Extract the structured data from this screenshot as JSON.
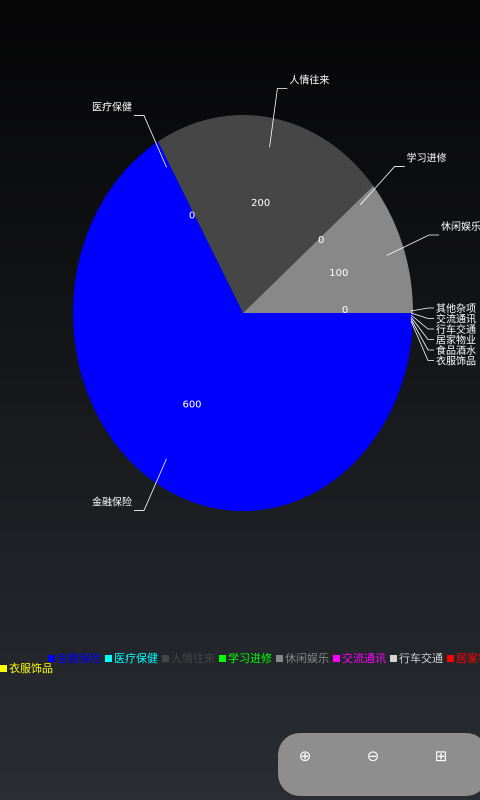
{
  "chart_data": {
    "type": "pie",
    "slices": [
      {
        "label": "金融保险",
        "value": 600,
        "color": "#0000ff",
        "value_label": "600"
      },
      {
        "label": "医疗保健",
        "value": 0,
        "color": "#00ffff",
        "value_label": "0"
      },
      {
        "label": "人情往来",
        "value": 200,
        "color": "#464646",
        "value_label": "200"
      },
      {
        "label": "学习进修",
        "value": 0,
        "color": "#00ff00",
        "value_label": "0"
      },
      {
        "label": "休闲娱乐",
        "value": 100,
        "color": "#888888",
        "value_label": "100"
      },
      {
        "label": "其他杂项",
        "value": 0,
        "color": "#ffffff",
        "value_label": "0"
      },
      {
        "label": "交流通讯",
        "value": 0,
        "color": "#ff00ff",
        "value_label": ""
      },
      {
        "label": "行车交通",
        "value": 0,
        "color": "#d3d3d3",
        "value_label": ""
      },
      {
        "label": "居家物业",
        "value": 0,
        "color": "#ff0000",
        "value_label": ""
      },
      {
        "label": "食品酒水",
        "value": 0,
        "color": "#ffffff",
        "value_label": ""
      },
      {
        "label": "衣服饰品",
        "value": 0,
        "color": "#ffff00",
        "value_label": ""
      }
    ],
    "legend_placement": "bottom",
    "grid": false
  },
  "legend": {
    "row1": [
      {
        "label": "金融保险",
        "color": "#0000ff"
      },
      {
        "label": "医疗保健",
        "color": "#00ffff"
      },
      {
        "label": "人情往来",
        "color": "#464646"
      },
      {
        "label": "学习进修",
        "color": "#00ff00"
      },
      {
        "label": "休闲娱乐",
        "color": "#888888"
      },
      {
        "label": "交流通讯",
        "color": "#ff00ff"
      },
      {
        "label": "行车交通",
        "color": "#d3d3d3"
      },
      {
        "label": "居家物业",
        "color": "#ff0000"
      },
      {
        "label": "食品酒水",
        "color": "#ffffff"
      }
    ],
    "row2": [
      {
        "label": "衣服饰品",
        "color": "#ffff00"
      }
    ]
  },
  "zoom_controls": {
    "zoom_in": "⊕",
    "zoom_out": "⊖",
    "fit": "⊞"
  }
}
